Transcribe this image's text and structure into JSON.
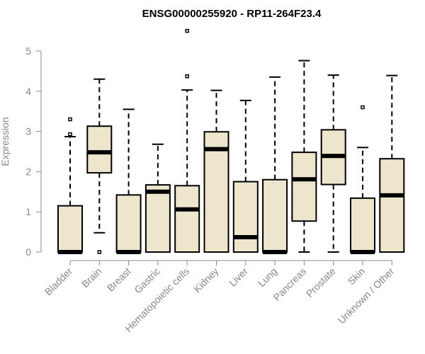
{
  "chart_data": {
    "type": "boxplot",
    "title": "ENSG00000255920 - RP11-264F23.4",
    "xlabel": "",
    "ylabel": "Expression",
    "ylim": [
      0,
      5
    ],
    "yticks": [
      0,
      1,
      2,
      3,
      4,
      5
    ],
    "box_fill": "#ede6cd",
    "categories": [
      "Bladder",
      "Brain",
      "Breast",
      "Gastric",
      "Hematopoietic cells",
      "Kidney",
      "Liver",
      "Lung",
      "Pancreas",
      "Prostate",
      "Skin",
      "Unknown / Other"
    ],
    "boxes": [
      {
        "min": 0,
        "q1": 0,
        "median": 0,
        "q3": 1.15,
        "max": 2.87,
        "outliers": [
          2.93,
          3.3
        ]
      },
      {
        "min": 0.48,
        "q1": 1.97,
        "median": 2.48,
        "q3": 3.13,
        "max": 4.3,
        "outliers": [
          0
        ]
      },
      {
        "min": 0,
        "q1": 0,
        "median": 0,
        "q3": 1.42,
        "max": 3.55,
        "outliers": []
      },
      {
        "min": 0,
        "q1": 0,
        "median": 1.5,
        "q3": 1.67,
        "max": 2.68,
        "outliers": []
      },
      {
        "min": 0,
        "q1": 0,
        "median": 1.06,
        "q3": 1.65,
        "max": 4.03,
        "outliers": [
          4.37,
          5.5
        ]
      },
      {
        "min": 0,
        "q1": 0,
        "median": 2.56,
        "q3": 2.99,
        "max": 4.02,
        "outliers": []
      },
      {
        "min": 0,
        "q1": 0,
        "median": 0.37,
        "q3": 1.75,
        "max": 3.77,
        "outliers": []
      },
      {
        "min": 0,
        "q1": 0,
        "median": 0,
        "q3": 1.8,
        "max": 4.35,
        "outliers": []
      },
      {
        "min": 0,
        "q1": 0.77,
        "median": 1.81,
        "q3": 2.48,
        "max": 4.76,
        "outliers": []
      },
      {
        "min": 0,
        "q1": 1.68,
        "median": 2.39,
        "q3": 3.04,
        "max": 4.4,
        "outliers": []
      },
      {
        "min": 0,
        "q1": 0,
        "median": 0,
        "q3": 1.34,
        "max": 2.6,
        "outliers": [
          3.6
        ]
      },
      {
        "min": 0,
        "q1": 0,
        "median": 1.41,
        "q3": 2.32,
        "max": 4.39,
        "outliers": []
      }
    ]
  }
}
